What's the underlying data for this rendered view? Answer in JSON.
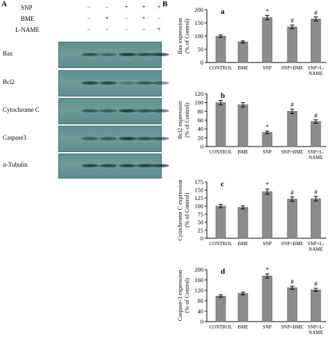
{
  "panel_a": {
    "letter": "A",
    "treatments": [
      {
        "label": "SNP",
        "signs": [
          "−",
          "−",
          "+",
          "+",
          "+"
        ]
      },
      {
        "label": "BME",
        "signs": [
          "−",
          "+",
          "−",
          "+",
          "−"
        ]
      },
      {
        "label": "L-NAME",
        "signs": [
          "−",
          "−",
          "−",
          "−",
          "+"
        ]
      }
    ],
    "blots": [
      {
        "label": "Bax",
        "intensities": [
          0.75,
          0.55,
          0.95,
          0.8,
          0.9
        ]
      },
      {
        "label": "Bcl2",
        "intensities": [
          0.9,
          0.85,
          0.35,
          0.7,
          0.6
        ]
      },
      {
        "label": "Cytochrome C",
        "intensities": [
          0.7,
          0.65,
          0.95,
          0.75,
          0.75
        ]
      },
      {
        "label": "Caspase3",
        "intensities": [
          0.65,
          0.7,
          0.95,
          0.75,
          0.75
        ]
      },
      {
        "label": "α-Tubulin",
        "intensities": [
          0.9,
          0.9,
          0.9,
          0.9,
          0.9
        ]
      }
    ]
  },
  "panel_b": {
    "letter": "B"
  },
  "chart_data": [
    {
      "type": "bar",
      "panel": "a",
      "categories": [
        "CONTROL",
        "BME",
        "SNP",
        "SNP+BME",
        "SNP+L-NAME"
      ],
      "values": [
        100,
        78,
        170,
        135,
        165
      ],
      "errors": [
        5,
        4,
        8,
        7,
        8
      ],
      "markers": [
        "",
        "",
        "*",
        "#",
        "#"
      ],
      "ylabel_lines": [
        "Bax expression",
        "(% of Control)"
      ],
      "ylim": [
        0,
        200
      ],
      "yticks": [
        0,
        50,
        100,
        150,
        200
      ]
    },
    {
      "type": "bar",
      "panel": "b",
      "categories": [
        "CONTROL",
        "BME",
        "SNP",
        "SNP+BME",
        "SNP+L-NAME"
      ],
      "values": [
        100,
        95,
        32,
        80,
        57
      ],
      "errors": [
        5,
        5,
        3,
        5,
        4
      ],
      "markers": [
        "",
        "",
        "*",
        "#",
        "#"
      ],
      "ylabel_lines": [
        "Bcl2 expression",
        "(% of Control)"
      ],
      "ylim": [
        0,
        120
      ],
      "yticks": [
        0,
        20,
        40,
        60,
        80,
        100,
        120
      ]
    },
    {
      "type": "bar",
      "panel": "c",
      "categories": [
        "CONTROL",
        "BME",
        "SNP",
        "SNP+BME",
        "SNP+L-NAME"
      ],
      "values": [
        100,
        96,
        145,
        122,
        123
      ],
      "errors": [
        5,
        5,
        8,
        7,
        7
      ],
      "markers": [
        "",
        "",
        "*",
        "#",
        "#"
      ],
      "ylabel_lines": [
        "Cytochrome C expression",
        "(% of Control)"
      ],
      "ylim": [
        0,
        175
      ],
      "yticks": [
        0,
        25,
        50,
        75,
        100,
        125,
        150,
        175
      ]
    },
    {
      "type": "bar",
      "panel": "d",
      "categories": [
        "CONTROL",
        "BME",
        "SNP",
        "SNP+BME",
        "SNP+L-NAME"
      ],
      "values": [
        98,
        108,
        175,
        130,
        122
      ],
      "errors": [
        5,
        5,
        8,
        6,
        6
      ],
      "markers": [
        "",
        "",
        "*",
        "#",
        "#"
      ],
      "ylabel_lines": [
        "Caspase-3 expression",
        "(% of Control)"
      ],
      "ylim": [
        0,
        200
      ],
      "yticks": [
        0,
        40,
        80,
        120,
        160,
        200
      ]
    }
  ]
}
